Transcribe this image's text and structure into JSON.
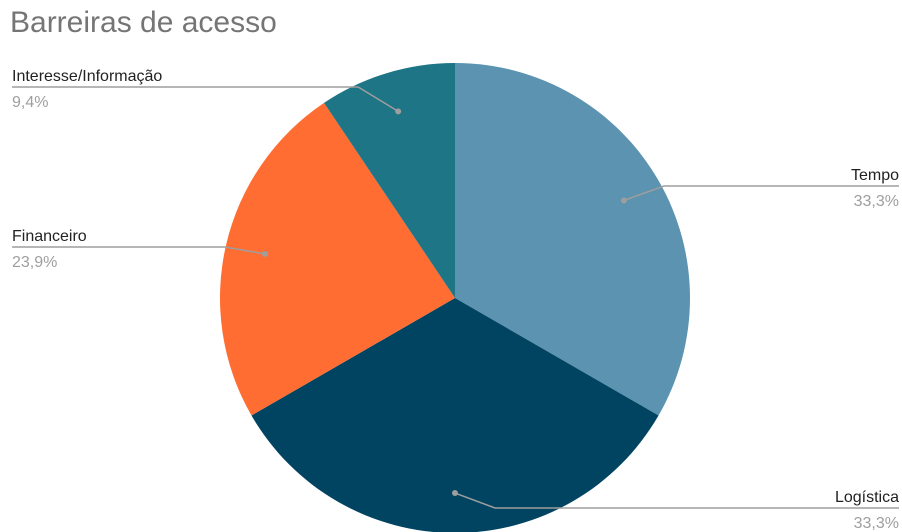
{
  "chart_data": {
    "type": "pie",
    "title": "Barreiras de acesso",
    "slices": [
      {
        "label": "Tempo",
        "value": 33.3,
        "pct_label": "33,3%",
        "color": "#5b93b0"
      },
      {
        "label": "Logística",
        "value": 33.3,
        "pct_label": "33,3%",
        "color": "#004461"
      },
      {
        "label": "Financeiro",
        "value": 23.9,
        "pct_label": "23,9%",
        "color": "#ff6d32"
      },
      {
        "label": "Interesse/Informação",
        "value": 9.4,
        "pct_label": "9,4%",
        "color": "#1d7585"
      }
    ],
    "start_angle_deg": 0,
    "direction": "clockwise",
    "legend": "callout-labels"
  }
}
